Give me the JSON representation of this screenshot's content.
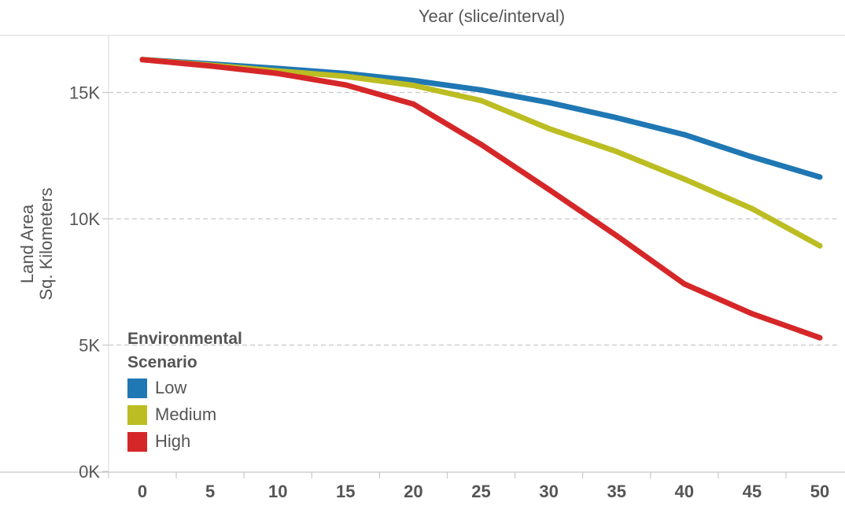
{
  "chart_data": {
    "type": "line",
    "title": "",
    "xlabel": "Year (slice/interval)",
    "ylabel_lines": [
      "Land Area",
      "Sq. Kilometers"
    ],
    "x": [
      0,
      5,
      10,
      15,
      20,
      25,
      30,
      35,
      40,
      45,
      50
    ],
    "x_tick_labels": [
      "0",
      "5",
      "10",
      "15",
      "20",
      "25",
      "30",
      "35",
      "40",
      "45",
      "50"
    ],
    "y_ticks": [
      0,
      5000,
      10000,
      15000
    ],
    "y_tick_labels": [
      "0K",
      "5K",
      "10K",
      "15K"
    ],
    "ylim": [
      0,
      16800
    ],
    "xlabel_position": "top",
    "grid": "horizontal dashed",
    "legend_placement": "bottom-left",
    "legend_title": "Environmental Scenario",
    "series": [
      {
        "name": "Low",
        "color": "#1f77b4",
        "values": [
          16300,
          16130,
          15950,
          15750,
          15470,
          15100,
          14600,
          14000,
          13330,
          12450,
          11650
        ]
      },
      {
        "name": "Medium",
        "color": "#bcbd22",
        "values": [
          16300,
          16080,
          15850,
          15640,
          15280,
          14680,
          13570,
          12660,
          11570,
          10400,
          8930
        ]
      },
      {
        "name": "High",
        "color": "#d62728",
        "values": [
          16300,
          16050,
          15750,
          15300,
          14540,
          12940,
          11160,
          9330,
          7420,
          6240,
          5290
        ]
      }
    ]
  }
}
